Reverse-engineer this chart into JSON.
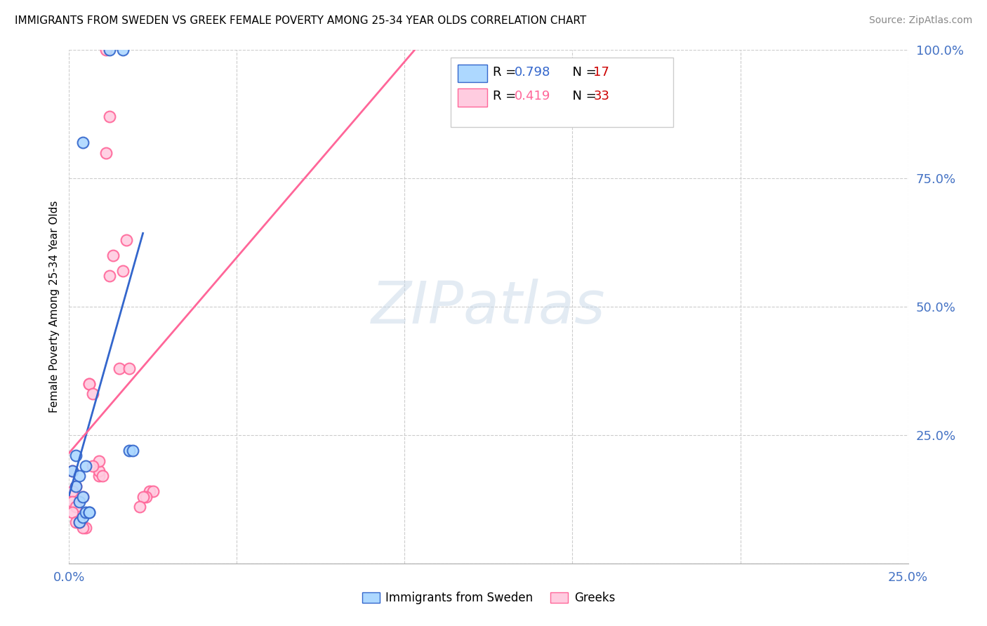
{
  "title": "IMMIGRANTS FROM SWEDEN VS GREEK FEMALE POVERTY AMONG 25-34 YEAR OLDS CORRELATION CHART",
  "source": "Source: ZipAtlas.com",
  "tick_color": "#4472c4",
  "ylabel": "Female Poverty Among 25-34 Year Olds",
  "xlim": [
    0.0,
    0.25
  ],
  "ylim": [
    0.0,
    1.0
  ],
  "xticks": [
    0.0,
    0.05,
    0.1,
    0.15,
    0.2,
    0.25
  ],
  "yticks": [
    0.0,
    0.25,
    0.5,
    0.75,
    1.0
  ],
  "xtick_labels_show": [
    "0.0%",
    "",
    "",
    "",
    "",
    "25.0%"
  ],
  "ytick_labels_show": [
    "",
    "25.0%",
    "50.0%",
    "75.0%",
    "100.0%"
  ],
  "sweden_R": 0.798,
  "sweden_N": 17,
  "greek_R": 0.419,
  "greek_N": 33,
  "sweden_face_color": "#add8ff",
  "greek_face_color": "#ffcce0",
  "sweden_edge_color": "#3366cc",
  "greek_edge_color": "#ff6699",
  "sweden_line_color": "#3366cc",
  "greek_line_color": "#ff6699",
  "watermark_text": "ZIPatlas",
  "sweden_x": [
    0.012,
    0.016,
    0.004,
    0.002,
    0.001,
    0.003,
    0.005,
    0.002,
    0.003,
    0.004,
    0.018,
    0.019,
    0.003,
    0.004,
    0.005,
    0.006,
    0.006
  ],
  "sweden_y": [
    1.0,
    1.0,
    0.82,
    0.21,
    0.18,
    0.17,
    0.19,
    0.15,
    0.12,
    0.13,
    0.22,
    0.22,
    0.08,
    0.09,
    0.1,
    0.1,
    0.1
  ],
  "greek_x": [
    0.001,
    0.002,
    0.001,
    0.001,
    0.002,
    0.001,
    0.002,
    0.005,
    0.004,
    0.003,
    0.009,
    0.009,
    0.01,
    0.009,
    0.007,
    0.006,
    0.006,
    0.007,
    0.011,
    0.012,
    0.011,
    0.012,
    0.013,
    0.015,
    0.018,
    0.024,
    0.025,
    0.017,
    0.016,
    0.023,
    0.022,
    0.021,
    0.004
  ],
  "greek_y": [
    0.18,
    0.15,
    0.14,
    0.12,
    0.11,
    0.1,
    0.08,
    0.07,
    0.07,
    0.08,
    0.17,
    0.18,
    0.17,
    0.2,
    0.19,
    0.35,
    0.35,
    0.33,
    1.0,
    0.87,
    0.8,
    0.56,
    0.6,
    0.38,
    0.38,
    0.14,
    0.14,
    0.63,
    0.57,
    0.13,
    0.13,
    0.11,
    0.13
  ],
  "dot_size": 130,
  "dot_linewidth": 1.5,
  "background_color": "#ffffff",
  "grid_color": "#cccccc",
  "legend_R_color_sweden": "#3366cc",
  "legend_R_color_greek": "#ff6699",
  "legend_N_color": "#cc0000"
}
